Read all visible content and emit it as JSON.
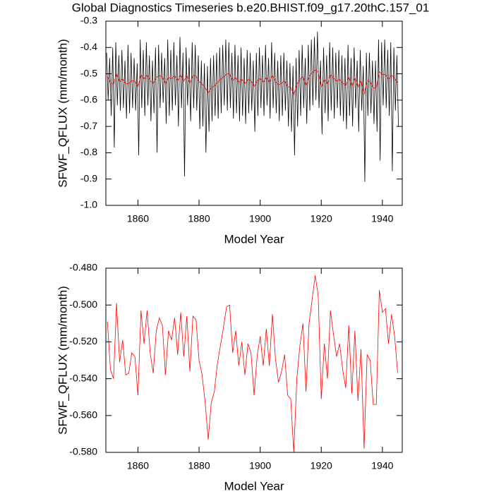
{
  "chart_data": [
    {
      "type": "line",
      "title": "Global Diagnostics Timeseries b.e20.BHIST.f09_g17.20thC.157_01",
      "x_label": "Model Year",
      "y_label": "SFWF_QFLUX (mm/month)",
      "xlim": [
        1849.5,
        1946.5
      ],
      "xticks": [
        1860,
        1880,
        1900,
        1920,
        1940
      ],
      "ylim": [
        -1.0,
        -0.3
      ],
      "yticks": [
        -0.3,
        -0.4,
        -0.5,
        -0.6,
        -0.7,
        -0.8,
        -0.9,
        {
          "value": -1.0,
          "label": "-1.0"
        }
      ],
      "series": [
        {
          "color": "#000000",
          "x": [
            1849.75,
            1850.25,
            1850.75,
            1851.25,
            1851.75,
            1852.25,
            1852.75,
            1853.25,
            1853.75,
            1854.25,
            1854.75,
            1855.25,
            1855.75,
            1856.25,
            1856.75,
            1857.25,
            1857.75,
            1858.25,
            1858.75,
            1859.25,
            1859.75,
            1860.25,
            1860.75,
            1861.25,
            1861.75,
            1862.25,
            1862.75,
            1863.25,
            1863.75,
            1864.25,
            1864.75,
            1865.25,
            1865.75,
            1866.25,
            1866.75,
            1867.25,
            1867.75,
            1868.25,
            1868.75,
            1869.25,
            1869.75,
            1870.25,
            1870.75,
            1871.25,
            1871.75,
            1872.25,
            1872.75,
            1873.25,
            1873.75,
            1874.25,
            1874.75,
            1875.25,
            1875.75,
            1876.25,
            1876.75,
            1877.25,
            1877.75,
            1878.25,
            1878.75,
            1879.25,
            1879.75,
            1880.25,
            1880.75,
            1881.25,
            1881.75,
            1882.25,
            1882.75,
            1883.25,
            1883.75,
            1884.25,
            1884.75,
            1885.25,
            1885.75,
            1886.25,
            1886.75,
            1887.25,
            1887.75,
            1888.25,
            1888.75,
            1889.25,
            1889.75,
            1890.25,
            1890.75,
            1891.25,
            1891.75,
            1892.25,
            1892.75,
            1893.25,
            1893.75,
            1894.25,
            1894.75,
            1895.25,
            1895.75,
            1896.25,
            1896.75,
            1897.25,
            1897.75,
            1898.25,
            1898.75,
            1899.25,
            1899.75,
            1900.25,
            1900.75,
            1901.25,
            1901.75,
            1902.25,
            1902.75,
            1903.25,
            1903.75,
            1904.25,
            1904.75,
            1905.25,
            1905.75,
            1906.25,
            1906.75,
            1907.25,
            1907.75,
            1908.25,
            1908.75,
            1909.25,
            1909.75,
            1910.25,
            1910.75,
            1911.25,
            1911.75,
            1912.25,
            1912.75,
            1913.25,
            1913.75,
            1914.25,
            1914.75,
            1915.25,
            1915.75,
            1916.25,
            1916.75,
            1917.25,
            1917.75,
            1918.25,
            1918.75,
            1919.25,
            1919.75,
            1920.25,
            1920.75,
            1921.25,
            1921.75,
            1922.25,
            1922.75,
            1923.25,
            1923.75,
            1924.25,
            1924.75,
            1925.25,
            1925.75,
            1926.25,
            1926.75,
            1927.25,
            1927.75,
            1928.25,
            1928.75,
            1929.25,
            1929.75,
            1930.25,
            1930.75,
            1931.25,
            1931.75,
            1932.25,
            1932.75,
            1933.25,
            1933.75,
            1934.25,
            1934.75,
            1935.25,
            1935.75,
            1936.25,
            1936.75,
            1937.25,
            1937.75,
            1938.25,
            1938.75,
            1939.25,
            1939.75,
            1940.25,
            1940.75,
            1941.25,
            1941.75,
            1942.25,
            1942.75,
            1943.25,
            1943.75,
            1944.25,
            1944.75,
            1945.25
          ],
          "values": [
            -0.42,
            -0.6,
            -0.44,
            -0.66,
            -0.4,
            -0.78,
            -0.38,
            -0.62,
            -0.43,
            -0.64,
            -0.41,
            -0.63,
            -0.45,
            -0.67,
            -0.39,
            -0.65,
            -0.42,
            -0.63,
            -0.44,
            -0.64,
            -0.46,
            -0.81,
            -0.37,
            -0.63,
            -0.41,
            -0.66,
            -0.38,
            -0.62,
            -0.43,
            -0.68,
            -0.45,
            -0.65,
            -0.4,
            -0.8,
            -0.39,
            -0.63,
            -0.42,
            -0.61,
            -0.44,
            -0.69,
            -0.37,
            -0.66,
            -0.41,
            -0.64,
            -0.38,
            -0.62,
            -0.43,
            -0.7,
            -0.36,
            -0.63,
            -0.42,
            -0.89,
            -0.4,
            -0.62,
            -0.44,
            -0.68,
            -0.38,
            -0.63,
            -0.39,
            -0.64,
            -0.43,
            -0.71,
            -0.45,
            -0.7,
            -0.46,
            -0.8,
            -0.47,
            -0.72,
            -0.44,
            -0.68,
            -0.43,
            -0.66,
            -0.42,
            -0.67,
            -0.4,
            -0.65,
            -0.39,
            -0.62,
            -0.37,
            -0.64,
            -0.38,
            -0.63,
            -0.42,
            -0.67,
            -0.39,
            -0.65,
            -0.43,
            -0.68,
            -0.4,
            -0.66,
            -0.44,
            -0.69,
            -0.41,
            -0.65,
            -0.42,
            -0.64,
            -0.45,
            -0.72,
            -0.42,
            -0.66,
            -0.4,
            -0.63,
            -0.43,
            -0.66,
            -0.39,
            -0.62,
            -0.44,
            -0.67,
            -0.38,
            -0.63,
            -0.42,
            -0.65,
            -0.45,
            -0.68,
            -0.43,
            -0.66,
            -0.42,
            -0.64,
            -0.45,
            -0.7,
            -0.46,
            -0.72,
            -0.47,
            -0.81,
            -0.44,
            -0.7,
            -0.41,
            -0.66,
            -0.39,
            -0.63,
            -0.44,
            -0.69,
            -0.39,
            -0.64,
            -0.37,
            -0.62,
            -0.36,
            -0.6,
            -0.34,
            -0.63,
            -0.45,
            -0.73,
            -0.4,
            -0.65,
            -0.43,
            -0.68,
            -0.38,
            -0.64,
            -0.4,
            -0.67,
            -0.42,
            -0.63,
            -0.41,
            -0.66,
            -0.43,
            -0.68,
            -0.44,
            -0.71,
            -0.39,
            -0.66,
            -0.44,
            -0.7,
            -0.4,
            -0.63,
            -0.45,
            -0.72,
            -0.41,
            -0.64,
            -0.47,
            -0.91,
            -0.42,
            -0.66,
            -0.42,
            -0.65,
            -0.45,
            -0.69,
            -0.45,
            -0.72,
            -0.37,
            -0.83,
            -0.38,
            -0.62,
            -0.37,
            -0.63,
            -0.41,
            -0.66,
            -0.38,
            -0.87,
            -0.4,
            -0.64,
            -0.43,
            -0.7
          ]
        },
        {
          "color": "#ff0000",
          "x": [
            1850,
            1851,
            1852,
            1853,
            1854,
            1855,
            1856,
            1857,
            1858,
            1859,
            1860,
            1861,
            1862,
            1863,
            1864,
            1865,
            1866,
            1867,
            1868,
            1869,
            1870,
            1871,
            1872,
            1873,
            1874,
            1875,
            1876,
            1877,
            1878,
            1879,
            1880,
            1881,
            1882,
            1883,
            1884,
            1885,
            1886,
            1887,
            1888,
            1889,
            1890,
            1891,
            1892,
            1893,
            1894,
            1895,
            1896,
            1897,
            1898,
            1899,
            1900,
            1901,
            1902,
            1903,
            1904,
            1905,
            1906,
            1907,
            1908,
            1909,
            1910,
            1911,
            1912,
            1913,
            1914,
            1915,
            1916,
            1917,
            1918,
            1919,
            1920,
            1921,
            1922,
            1923,
            1924,
            1925,
            1926,
            1927,
            1928,
            1929,
            1930,
            1931,
            1932,
            1933,
            1934,
            1935,
            1936,
            1937,
            1938,
            1939,
            1940,
            1941,
            1942,
            1943,
            1944,
            1945
          ],
          "values": [
            -0.509,
            -0.535,
            -0.54,
            -0.499,
            -0.531,
            -0.519,
            -0.538,
            -0.537,
            -0.526,
            -0.528,
            -0.549,
            -0.503,
            -0.521,
            -0.503,
            -0.526,
            -0.537,
            -0.514,
            -0.507,
            -0.511,
            -0.538,
            -0.514,
            -0.519,
            -0.507,
            -0.527,
            -0.504,
            -0.528,
            -0.506,
            -0.536,
            -0.506,
            -0.508,
            -0.53,
            -0.538,
            -0.553,
            -0.573,
            -0.553,
            -0.547,
            -0.532,
            -0.522,
            -0.512,
            -0.501,
            -0.5,
            -0.526,
            -0.514,
            -0.533,
            -0.52,
            -0.538,
            -0.521,
            -0.526,
            -0.549,
            -0.528,
            -0.517,
            -0.533,
            -0.513,
            -0.533,
            -0.505,
            -0.529,
            -0.542,
            -0.536,
            -0.527,
            -0.549,
            -0.551,
            -0.58,
            -0.54,
            -0.522,
            -0.51,
            -0.547,
            -0.51,
            -0.497,
            -0.484,
            -0.495,
            -0.551,
            -0.521,
            -0.54,
            -0.503,
            -0.516,
            -0.528,
            -0.521,
            -0.535,
            -0.545,
            -0.511,
            -0.548,
            -0.514,
            -0.552,
            -0.524,
            -0.578,
            -0.527,
            -0.53,
            -0.554,
            -0.554,
            -0.492,
            -0.504,
            -0.502,
            -0.521,
            -0.505,
            -0.517,
            -0.537
          ]
        }
      ]
    },
    {
      "type": "line",
      "x_label": "Model Year",
      "y_label": "SFWF_QFLUX (mm/month)",
      "xlim": [
        1849.5,
        1946.5
      ],
      "xticks": [
        1860,
        1880,
        1900,
        1920,
        1940
      ],
      "ylim": [
        -0.58,
        -0.48
      ],
      "yticks": [
        {
          "value": -0.48,
          "label": "-0.480"
        },
        {
          "value": -0.5,
          "label": "-0.500"
        },
        {
          "value": -0.52,
          "label": "-0.520"
        },
        {
          "value": -0.54,
          "label": "-0.540"
        },
        {
          "value": -0.56,
          "label": "-0.560"
        },
        {
          "value": -0.58,
          "label": "-0.580"
        }
      ],
      "series": [
        {
          "color": "#ff0000",
          "x": [
            1850,
            1851,
            1852,
            1853,
            1854,
            1855,
            1856,
            1857,
            1858,
            1859,
            1860,
            1861,
            1862,
            1863,
            1864,
            1865,
            1866,
            1867,
            1868,
            1869,
            1870,
            1871,
            1872,
            1873,
            1874,
            1875,
            1876,
            1877,
            1878,
            1879,
            1880,
            1881,
            1882,
            1883,
            1884,
            1885,
            1886,
            1887,
            1888,
            1889,
            1890,
            1891,
            1892,
            1893,
            1894,
            1895,
            1896,
            1897,
            1898,
            1899,
            1900,
            1901,
            1902,
            1903,
            1904,
            1905,
            1906,
            1907,
            1908,
            1909,
            1910,
            1911,
            1912,
            1913,
            1914,
            1915,
            1916,
            1917,
            1918,
            1919,
            1920,
            1921,
            1922,
            1923,
            1924,
            1925,
            1926,
            1927,
            1928,
            1929,
            1930,
            1931,
            1932,
            1933,
            1934,
            1935,
            1936,
            1937,
            1938,
            1939,
            1940,
            1941,
            1942,
            1943,
            1944,
            1945
          ],
          "values": [
            -0.509,
            -0.535,
            -0.54,
            -0.499,
            -0.531,
            -0.519,
            -0.538,
            -0.537,
            -0.526,
            -0.528,
            -0.549,
            -0.503,
            -0.521,
            -0.503,
            -0.526,
            -0.537,
            -0.514,
            -0.507,
            -0.511,
            -0.538,
            -0.514,
            -0.519,
            -0.507,
            -0.527,
            -0.504,
            -0.528,
            -0.506,
            -0.536,
            -0.506,
            -0.508,
            -0.53,
            -0.538,
            -0.553,
            -0.573,
            -0.553,
            -0.547,
            -0.532,
            -0.522,
            -0.512,
            -0.501,
            -0.5,
            -0.526,
            -0.514,
            -0.533,
            -0.52,
            -0.538,
            -0.521,
            -0.526,
            -0.549,
            -0.528,
            -0.517,
            -0.533,
            -0.513,
            -0.533,
            -0.505,
            -0.529,
            -0.542,
            -0.536,
            -0.527,
            -0.549,
            -0.551,
            -0.58,
            -0.54,
            -0.522,
            -0.51,
            -0.547,
            -0.51,
            -0.497,
            -0.484,
            -0.495,
            -0.551,
            -0.521,
            -0.54,
            -0.503,
            -0.516,
            -0.528,
            -0.521,
            -0.535,
            -0.545,
            -0.511,
            -0.548,
            -0.514,
            -0.552,
            -0.524,
            -0.578,
            -0.527,
            -0.53,
            -0.554,
            -0.554,
            -0.492,
            -0.504,
            -0.502,
            -0.521,
            -0.505,
            -0.517,
            -0.537
          ]
        }
      ]
    }
  ]
}
